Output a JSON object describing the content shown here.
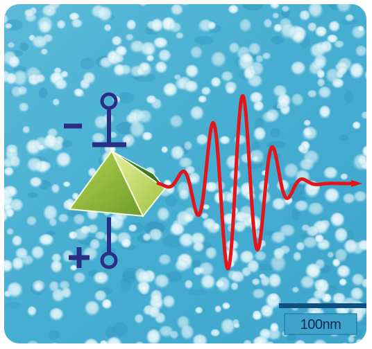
{
  "scale_bar": {
    "label": "100nm"
  },
  "symbols": {
    "minus": "−",
    "plus": "+"
  },
  "colors": {
    "background": "#4db3d4",
    "particle": "#e6f6fb",
    "electrode": "#2a2f86",
    "wave": "#e3151a",
    "pyramid_light": "#cfe07a",
    "pyramid_dark": "#3f7d2a"
  },
  "icons": [
    "electrode-minus-icon",
    "electrode-plus-icon",
    "pyramid-icon",
    "wave-packet-icon",
    "arrow-icon"
  ]
}
